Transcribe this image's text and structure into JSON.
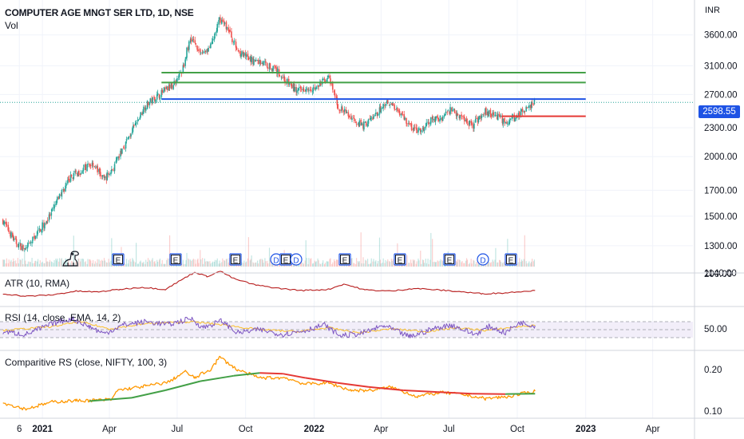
{
  "header": {
    "title": "COMPUTER AGE MNGT SER LTD, 1D, NSE",
    "volume_label": "Vol",
    "currency": "INR"
  },
  "price_tag": {
    "label": "2598.55",
    "color": "#1e53e5"
  },
  "colors": {
    "up": "#26a69a",
    "down": "#ef5350",
    "level_green": "#43a047",
    "level_blue": "#1e53e5",
    "level_red": "#e53935",
    "atr": "#b71c1c",
    "rsi": "#7e57c2",
    "rsi_ma": "#fbc02d",
    "comparative_rs": "#ff9800",
    "comparative_rs_ma_rising": "#43a047",
    "comparative_rs_ma_falling": "#e53935"
  },
  "panes": {
    "atr_label": "ATR (10, RMA)",
    "rsi_label": "RSI (14, close, EMA, 14, 2)",
    "crs_label": "Comparitive RS (close, NIFTY, 100, 3)"
  },
  "events": [
    {
      "label": "E"
    },
    {
      "label": "E"
    },
    {
      "label": "E"
    },
    {
      "label": "D"
    },
    {
      "label": "E"
    },
    {
      "label": "D"
    },
    {
      "label": "E"
    },
    {
      "label": "E"
    },
    {
      "label": "E"
    },
    {
      "label": "D"
    },
    {
      "label": "E"
    }
  ],
  "chart_data": [
    {
      "type": "candlestick",
      "title": "COMPUTER AGE MNGT SER LTD, 1D, NSE",
      "y_scale": "log",
      "y_ticks": [
        1140,
        1300,
        1500,
        1700,
        2000,
        2300,
        2700,
        3100,
        3600
      ],
      "y_tick_labels": [
        "1140.00",
        "1300.00",
        "1500.00",
        "1700.00",
        "2000.00",
        "2300.00",
        "2700.00",
        "3100.00",
        "3600.00"
      ],
      "x_tick_labels": [
        "6",
        "2021",
        "Apr",
        "Jul",
        "Oct",
        "2022",
        "Apr",
        "Jul",
        "Oct",
        "2023",
        "Apr"
      ],
      "x_ticks": [
        "2020-12-01",
        "2021-01-01",
        "2021-04-01",
        "2021-07-01",
        "2021-10-01",
        "2022-01-01",
        "2022-04-01",
        "2022-07-01",
        "2022-10-01",
        "2023-01-01",
        "2023-04-01"
      ],
      "x_range": [
        "2020-11-05",
        "2023-05-25"
      ],
      "last_price": 2598.55,
      "close_path": [
        [
          "2020-11-09",
          1470
        ],
        [
          "2020-11-25",
          1330
        ],
        [
          "2020-12-10",
          1270
        ],
        [
          "2020-12-28",
          1400
        ],
        [
          "2021-01-12",
          1500
        ],
        [
          "2021-01-25",
          1660
        ],
        [
          "2021-02-10",
          1820
        ],
        [
          "2021-02-25",
          1880
        ],
        [
          "2021-03-10",
          1940
        ],
        [
          "2021-03-25",
          1790
        ],
        [
          "2021-04-08",
          1900
        ],
        [
          "2021-04-20",
          2090
        ],
        [
          "2021-05-05",
          2310
        ],
        [
          "2021-05-20",
          2560
        ],
        [
          "2021-06-05",
          2680
        ],
        [
          "2021-06-25",
          2820
        ],
        [
          "2021-07-08",
          3020
        ],
        [
          "2021-07-20",
          3560
        ],
        [
          "2021-08-02",
          3300
        ],
        [
          "2021-08-16",
          3400
        ],
        [
          "2021-08-28",
          3900
        ],
        [
          "2021-09-08",
          3700
        ],
        [
          "2021-09-20",
          3350
        ],
        [
          "2021-10-05",
          3200
        ],
        [
          "2021-10-25",
          3150
        ],
        [
          "2021-11-10",
          3050
        ],
        [
          "2021-11-25",
          2880
        ],
        [
          "2021-12-10",
          2740
        ],
        [
          "2021-12-22",
          2800
        ],
        [
          "2022-01-05",
          2780
        ],
        [
          "2022-01-20",
          2950
        ],
        [
          "2022-02-03",
          2540
        ],
        [
          "2022-02-20",
          2420
        ],
        [
          "2022-03-08",
          2320
        ],
        [
          "2022-03-25",
          2440
        ],
        [
          "2022-04-10",
          2620
        ],
        [
          "2022-04-25",
          2500
        ],
        [
          "2022-05-12",
          2300
        ],
        [
          "2022-05-25",
          2250
        ],
        [
          "2022-06-08",
          2390
        ],
        [
          "2022-06-20",
          2400
        ],
        [
          "2022-07-05",
          2520
        ],
        [
          "2022-07-20",
          2410
        ],
        [
          "2022-08-03",
          2330
        ],
        [
          "2022-08-18",
          2490
        ],
        [
          "2022-09-01",
          2450
        ],
        [
          "2022-09-15",
          2360
        ],
        [
          "2022-09-30",
          2420
        ],
        [
          "2022-10-10",
          2510
        ],
        [
          "2022-10-25",
          2598.55
        ]
      ],
      "levels": [
        {
          "value": 3000,
          "color": "green",
          "from": "2021-06-10",
          "to": "2023-01-01"
        },
        {
          "value": 2860,
          "color": "green",
          "from": "2021-06-10",
          "to": "2023-01-01"
        },
        {
          "value": 2640,
          "color": "blue",
          "from": "2021-06-10",
          "to": "2023-01-01"
        },
        {
          "value": 2430,
          "color": "red",
          "from": "2022-09-10",
          "to": "2023-01-01"
        }
      ]
    },
    {
      "type": "line",
      "title": "ATR (10, RMA)",
      "y_tick_labels": [
        "200.00"
      ],
      "series": [
        {
          "values": [
            [
              "2020-11-09",
              100
            ],
            [
              "2020-12-10",
              88
            ],
            [
              "2021-01-15",
              95
            ],
            [
              "2021-02-15",
              112
            ],
            [
              "2021-03-15",
              108
            ],
            [
              "2021-04-15",
              120
            ],
            [
              "2021-05-15",
              130
            ],
            [
              "2021-06-15",
              120
            ],
            [
              "2021-07-12",
              175
            ],
            [
              "2021-07-25",
              200
            ],
            [
              "2021-08-10",
              180
            ],
            [
              "2021-08-28",
              205
            ],
            [
              "2021-09-15",
              170
            ],
            [
              "2021-10-15",
              140
            ],
            [
              "2021-11-15",
              125
            ],
            [
              "2021-12-15",
              115
            ],
            [
              "2022-01-20",
              120
            ],
            [
              "2022-02-10",
              145
            ],
            [
              "2022-03-10",
              118
            ],
            [
              "2022-04-15",
              112
            ],
            [
              "2022-05-15",
              125
            ],
            [
              "2022-06-15",
              118
            ],
            [
              "2022-07-15",
              110
            ],
            [
              "2022-08-15",
              100
            ],
            [
              "2022-09-15",
              104
            ],
            [
              "2022-10-10",
              112
            ],
            [
              "2022-10-25",
              115
            ]
          ]
        }
      ]
    },
    {
      "type": "line",
      "title": "RSI (14, close, EMA, 14, 2)",
      "y_tick_labels": [
        "50.00"
      ],
      "bands": [
        30,
        50,
        70
      ],
      "series": [
        {
          "values": [
            [
              "2020-11-09",
              45
            ],
            [
              "2020-12-10",
              38
            ],
            [
              "2021-01-15",
              65
            ],
            [
              "2021-02-10",
              78
            ],
            [
              "2021-03-05",
              58
            ],
            [
              "2021-03-25",
              40
            ],
            [
              "2021-04-20",
              62
            ],
            [
              "2021-05-20",
              70
            ],
            [
              "2021-06-20",
              63
            ],
            [
              "2021-07-20",
              78
            ],
            [
              "2021-08-05",
              55
            ],
            [
              "2021-08-30",
              72
            ],
            [
              "2021-09-20",
              42
            ],
            [
              "2021-10-20",
              50
            ],
            [
              "2021-11-20",
              38
            ],
            [
              "2021-12-20",
              48
            ],
            [
              "2022-01-15",
              62
            ],
            [
              "2022-02-05",
              35
            ],
            [
              "2022-03-05",
              40
            ],
            [
              "2022-04-05",
              60
            ],
            [
              "2022-05-10",
              32
            ],
            [
              "2022-06-10",
              52
            ],
            [
              "2022-07-05",
              62
            ],
            [
              "2022-08-05",
              38
            ],
            [
              "2022-08-25",
              58
            ],
            [
              "2022-09-15",
              42
            ],
            [
              "2022-10-05",
              68
            ],
            [
              "2022-10-25",
              60
            ]
          ]
        },
        {
          "values": [
            [
              "2020-11-09",
              48
            ],
            [
              "2021-01-15",
              58
            ],
            [
              "2021-02-20",
              70
            ],
            [
              "2021-04-01",
              52
            ],
            [
              "2021-05-20",
              65
            ],
            [
              "2021-07-20",
              70
            ],
            [
              "2021-09-01",
              62
            ],
            [
              "2021-10-20",
              50
            ],
            [
              "2021-12-10",
              45
            ],
            [
              "2022-01-20",
              55
            ],
            [
              "2022-03-01",
              42
            ],
            [
              "2022-04-15",
              52
            ],
            [
              "2022-06-01",
              45
            ],
            [
              "2022-07-10",
              55
            ],
            [
              "2022-08-20",
              48
            ],
            [
              "2022-10-05",
              58
            ],
            [
              "2022-10-25",
              60
            ]
          ]
        }
      ]
    },
    {
      "type": "line",
      "title": "Comparitive RS (close, NIFTY, 100, 3)",
      "y_tick_labels": [
        "0.20",
        "0.10"
      ],
      "series": [
        {
          "values": [
            [
              "2020-11-09",
              0.12
            ],
            [
              "2020-12-10",
              0.105
            ],
            [
              "2021-01-15",
              0.122
            ],
            [
              "2021-02-15",
              0.125
            ],
            [
              "2021-03-15",
              0.126
            ],
            [
              "2021-04-05",
              0.128
            ],
            [
              "2021-04-12",
              0.15
            ],
            [
              "2021-05-20",
              0.16
            ],
            [
              "2021-06-20",
              0.17
            ],
            [
              "2021-07-12",
              0.195
            ],
            [
              "2021-07-25",
              0.18
            ],
            [
              "2021-08-15",
              0.2
            ],
            [
              "2021-08-28",
              0.23
            ],
            [
              "2021-09-20",
              0.2
            ],
            [
              "2021-10-20",
              0.18
            ],
            [
              "2021-11-25",
              0.18
            ],
            [
              "2021-12-20",
              0.165
            ],
            [
              "2022-01-20",
              0.168
            ],
            [
              "2022-02-20",
              0.15
            ],
            [
              "2022-03-20",
              0.15
            ],
            [
              "2022-04-15",
              0.158
            ],
            [
              "2022-05-20",
              0.135
            ],
            [
              "2022-06-20",
              0.145
            ],
            [
              "2022-07-20",
              0.14
            ],
            [
              "2022-08-20",
              0.13
            ],
            [
              "2022-09-20",
              0.135
            ],
            [
              "2022-10-25",
              0.148
            ]
          ]
        },
        {
          "values": [
            [
              "2021-03-05",
              0.124
            ],
            [
              "2021-05-01",
              0.132
            ],
            [
              "2021-06-15",
              0.15
            ],
            [
              "2021-08-01",
              0.172
            ],
            [
              "2021-09-15",
              0.185
            ],
            [
              "2021-10-20",
              0.192
            ],
            [
              "2021-11-20",
              0.19
            ],
            [
              "2021-12-20",
              0.18
            ],
            [
              "2022-02-01",
              0.168
            ],
            [
              "2022-03-15",
              0.158
            ],
            [
              "2022-05-01",
              0.15
            ],
            [
              "2022-06-15",
              0.146
            ],
            [
              "2022-08-01",
              0.142
            ],
            [
              "2022-09-15",
              0.141
            ],
            [
              "2022-10-25",
              0.142
            ]
          ]
        }
      ]
    }
  ]
}
